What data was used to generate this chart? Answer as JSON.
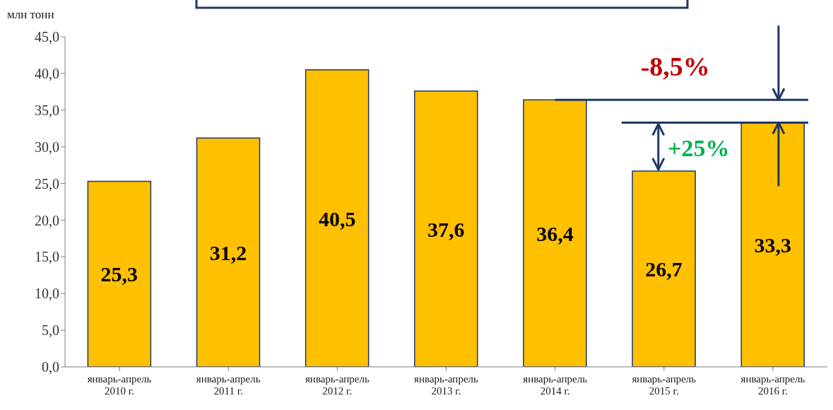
{
  "chart_data": {
    "type": "bar",
    "ylabel": "млн тонн",
    "categories": [
      "январь-апрель 2010 г.",
      "январь-апрель 2011 г.",
      "январь-апрель 2012 г.",
      "январь-апрель 2013 г.",
      "январь-апрель 2014 г.",
      "январь-апрель 2015 г.",
      "январь-апрель 2016 г."
    ],
    "values": [
      25.3,
      31.2,
      40.5,
      37.6,
      36.4,
      26.7,
      33.3
    ],
    "value_labels": [
      "25,3",
      "31,2",
      "40,5",
      "37,6",
      "36,4",
      "26,7",
      "33,3"
    ],
    "color": "#ffc000",
    "ylim": [
      0,
      45
    ],
    "yticks": [
      {
        "value": 0,
        "label": "0,0"
      },
      {
        "value": 5,
        "label": "5,0"
      },
      {
        "value": 10,
        "label": "10,0"
      },
      {
        "value": 15,
        "label": "15,0"
      },
      {
        "value": 20,
        "label": "20,0"
      },
      {
        "value": 25,
        "label": "25,0"
      },
      {
        "value": 30,
        "label": "30,0"
      },
      {
        "value": 35,
        "label": "35,0"
      },
      {
        "value": 40,
        "label": "40,0"
      },
      {
        "value": 45,
        "label": "45,0"
      }
    ],
    "grid": false,
    "legend": false,
    "annotations": [
      "-8,5%",
      "+25%"
    ]
  }
}
